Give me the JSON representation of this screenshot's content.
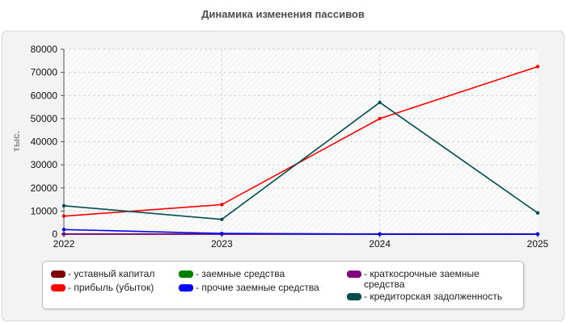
{
  "chart_data": {
    "type": "line",
    "title": "Динамика изменения пассивов",
    "ylabel": "тыс.",
    "xlabel": "",
    "x": [
      "2022",
      "2023",
      "2024",
      "2025"
    ],
    "ylim": [
      0,
      80000
    ],
    "yticks": [
      "0",
      "10000",
      "20000",
      "30000",
      "40000",
      "50000",
      "60000",
      "70000",
      "80000"
    ],
    "grid": true,
    "legend_position": "bottom",
    "series": [
      {
        "name": "- уставный капитал",
        "color": "#800000",
        "values": [
          100,
          100,
          100,
          100
        ]
      },
      {
        "name": "- заемные средства",
        "color": "#008000",
        "values": [
          0,
          0,
          0,
          0
        ]
      },
      {
        "name": "- краткосрочные заемные средства",
        "color": "#800080",
        "values": [
          0,
          0,
          0,
          0
        ]
      },
      {
        "name": "- прибыль (убыток)",
        "color": "#ff0000",
        "values": [
          7800,
          12800,
          50000,
          72500
        ]
      },
      {
        "name": "- прочие заемные средства",
        "color": "#0000ff",
        "values": [
          2000,
          300,
          0,
          0
        ]
      },
      {
        "name": "- кредиторская задолженность",
        "color": "#004d4d",
        "values": [
          12300,
          6400,
          57000,
          9200
        ]
      }
    ]
  }
}
